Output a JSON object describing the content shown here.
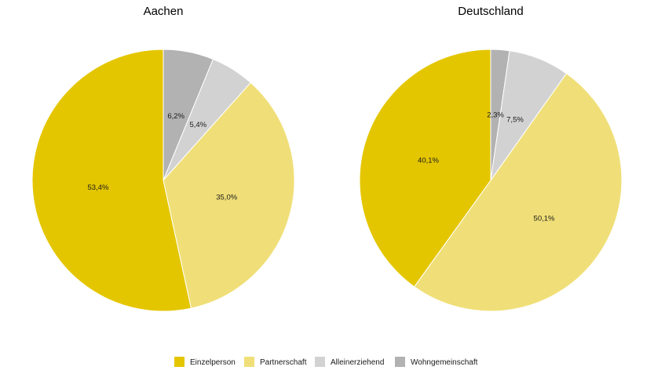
{
  "chart_data": [
    {
      "type": "pie",
      "title": "Aachen",
      "categories": [
        "Einzelperson",
        "Partnerschaft",
        "Alleinerziehend",
        "Wohngemeinschaft"
      ],
      "values": [
        53.4,
        35.0,
        5.4,
        6.2
      ],
      "labels": [
        "53,4%",
        "35,0%",
        "5,4%",
        "6,2%"
      ]
    },
    {
      "type": "pie",
      "title": "Deutschland",
      "categories": [
        "Einzelperson",
        "Partnerschaft",
        "Alleinerziehend",
        "Wohngemeinschaft"
      ],
      "values": [
        40.1,
        50.1,
        7.5,
        2.3
      ],
      "labels": [
        "40,1%",
        "50,1%",
        "7,5%",
        "2,3%"
      ]
    }
  ],
  "legend": {
    "placement": "bottom",
    "items": [
      {
        "label": "Einzelperson",
        "color": "#e4c600"
      },
      {
        "label": "Partnerschaft",
        "color": "#f0df78"
      },
      {
        "label": "Alleinerziehend",
        "color": "#d2d2d2"
      },
      {
        "label": "Wohngemeinschaft",
        "color": "#b2b2b2"
      }
    ]
  }
}
